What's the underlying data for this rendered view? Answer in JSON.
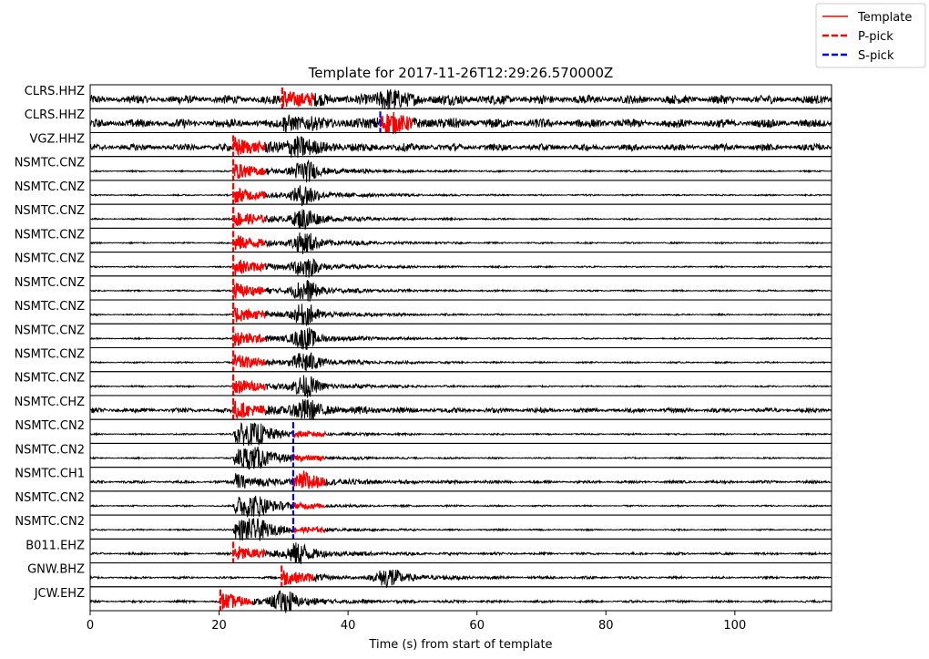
{
  "chart_data": {
    "type": "line",
    "title": "Template for 2017-11-26T12:29:26.570000Z",
    "xlabel": "Time (s) from start of template",
    "ylabel": "",
    "xlim": [
      0,
      115
    ],
    "xticks": [
      0,
      20,
      40,
      60,
      80,
      100
    ],
    "grid": false,
    "legend": {
      "placement": "top-right",
      "entries": [
        {
          "label": "Template",
          "color": "#ff0000",
          "style": "solid"
        },
        {
          "label": "P-pick",
          "color": "#ff0000",
          "style": "dashed"
        },
        {
          "label": "S-pick",
          "color": "#0000ff",
          "style": "dashed"
        }
      ]
    },
    "colors": {
      "trace": "#000000",
      "template": "#ff0000",
      "p_pick": "#ff0000",
      "s_pick": "#0000ff"
    },
    "traces": [
      {
        "station": "CLRS.HHZ",
        "pick": "P",
        "pick_time": 29.8,
        "onset": 29.8,
        "window": [
          29.8,
          34.8
        ],
        "peak_time": 46,
        "noise": 0.45,
        "peak": 0.9
      },
      {
        "station": "CLRS.HHZ",
        "pick": "S",
        "pick_time": 45.0,
        "onset": 29.8,
        "window": [
          45.0,
          50.0
        ],
        "peak_time": 46,
        "noise": 0.45,
        "peak": 0.8
      },
      {
        "station": "VGZ.HHZ",
        "pick": "P",
        "pick_time": 22.2,
        "onset": 22.2,
        "window": [
          22.2,
          27.2
        ],
        "peak_time": 32,
        "noise": 0.35,
        "peak": 1.0
      },
      {
        "station": "NSMTC.CNZ",
        "pick": "P",
        "pick_time": 22.2,
        "onset": 22.2,
        "window": [
          22.2,
          27.2
        ],
        "peak_time": 33,
        "noise": 0.08,
        "peak": 1.0
      },
      {
        "station": "NSMTC.CNZ",
        "pick": "P",
        "pick_time": 22.2,
        "onset": 22.2,
        "window": [
          22.2,
          27.2
        ],
        "peak_time": 33,
        "noise": 0.08,
        "peak": 1.0
      },
      {
        "station": "NSMTC.CNZ",
        "pick": "P",
        "pick_time": 22.2,
        "onset": 22.2,
        "window": [
          22.2,
          27.2
        ],
        "peak_time": 33,
        "noise": 0.08,
        "peak": 1.0
      },
      {
        "station": "NSMTC.CNZ",
        "pick": "P",
        "pick_time": 22.2,
        "onset": 22.2,
        "window": [
          22.2,
          27.2
        ],
        "peak_time": 33,
        "noise": 0.08,
        "peak": 1.0
      },
      {
        "station": "NSMTC.CNZ",
        "pick": "P",
        "pick_time": 22.2,
        "onset": 22.2,
        "window": [
          22.2,
          27.2
        ],
        "peak_time": 33,
        "noise": 0.08,
        "peak": 1.0
      },
      {
        "station": "NSMTC.CNZ",
        "pick": "P",
        "pick_time": 22.2,
        "onset": 22.2,
        "window": [
          22.2,
          27.2
        ],
        "peak_time": 33,
        "noise": 0.08,
        "peak": 1.0
      },
      {
        "station": "NSMTC.CNZ",
        "pick": "P",
        "pick_time": 22.2,
        "onset": 22.2,
        "window": [
          22.2,
          27.2
        ],
        "peak_time": 33,
        "noise": 0.08,
        "peak": 1.0
      },
      {
        "station": "NSMTC.CNZ",
        "pick": "P",
        "pick_time": 22.2,
        "onset": 22.2,
        "window": [
          22.2,
          27.2
        ],
        "peak_time": 33,
        "noise": 0.08,
        "peak": 1.0
      },
      {
        "station": "NSMTC.CNZ",
        "pick": "P",
        "pick_time": 22.2,
        "onset": 22.2,
        "window": [
          22.2,
          27.2
        ],
        "peak_time": 33,
        "noise": 0.08,
        "peak": 1.0
      },
      {
        "station": "NSMTC.CNZ",
        "pick": "P",
        "pick_time": 22.2,
        "onset": 22.2,
        "window": [
          22.2,
          27.2
        ],
        "peak_time": 33,
        "noise": 0.08,
        "peak": 1.0
      },
      {
        "station": "NSMTC.CHZ",
        "pick": "P",
        "pick_time": 22.2,
        "onset": 22.2,
        "window": [
          22.2,
          27.2
        ],
        "peak_time": 33,
        "noise": 0.25,
        "peak": 1.0
      },
      {
        "station": "NSMTC.CN2",
        "pick": "S",
        "pick_time": 31.5,
        "onset": 22.2,
        "window": [
          31.5,
          36.5
        ],
        "peak_time": 25,
        "noise": 0.08,
        "peak": 0.9
      },
      {
        "station": "NSMTC.CN2",
        "pick": "S",
        "pick_time": 31.5,
        "onset": 22.2,
        "window": [
          31.5,
          36.5
        ],
        "peak_time": 25,
        "noise": 0.08,
        "peak": 0.9
      },
      {
        "station": "NSMTC.CH1",
        "pick": "S",
        "pick_time": 31.5,
        "onset": 22.2,
        "window": [
          31.5,
          36.5
        ],
        "peak_time": 33,
        "noise": 0.15,
        "peak": 0.7
      },
      {
        "station": "NSMTC.CN2",
        "pick": "S",
        "pick_time": 31.5,
        "onset": 22.2,
        "window": [
          31.5,
          36.5
        ],
        "peak_time": 25,
        "noise": 0.08,
        "peak": 0.9
      },
      {
        "station": "NSMTC.CN2",
        "pick": "S",
        "pick_time": 31.5,
        "onset": 22.2,
        "window": [
          31.5,
          36.5
        ],
        "peak_time": 25,
        "noise": 0.08,
        "peak": 0.9
      },
      {
        "station": "B011.EHZ",
        "pick": "P",
        "pick_time": 22.2,
        "onset": 22.2,
        "window": [
          22.2,
          27.2
        ],
        "peak_time": 32,
        "noise": 0.12,
        "peak": 1.0
      },
      {
        "station": "GNW.BHZ",
        "pick": "P",
        "pick_time": 29.7,
        "onset": 29.7,
        "window": [
          29.7,
          34.7
        ],
        "peak_time": 46,
        "noise": 0.12,
        "peak": 1.0
      },
      {
        "station": "JCW.EHZ",
        "pick": "P",
        "pick_time": 20.2,
        "onset": 20.2,
        "window": [
          20.2,
          25.2
        ],
        "peak_time": 30,
        "noise": 0.12,
        "peak": 1.0
      }
    ]
  }
}
